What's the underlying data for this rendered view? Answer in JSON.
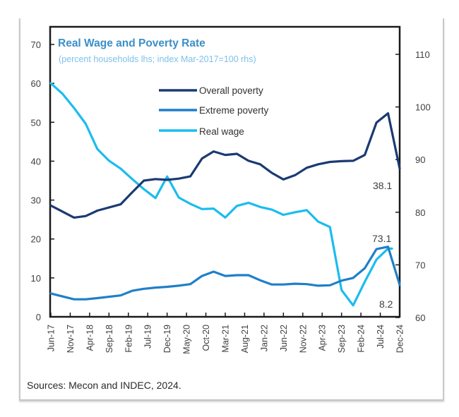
{
  "chart_data": {
    "type": "line",
    "title": "Real Wage and Poverty Rate",
    "subtitle": "(percent households lhs; index Mar-2017=100 rhs)",
    "xlabel": "",
    "ylabel_left": "percent households",
    "ylabel_right": "index Mar-2017=100",
    "x_start": "Jun-17",
    "x_end": "Dec-24",
    "x_tick_labels": [
      "Jun-17",
      "Nov-17",
      "Apr-18",
      "Sep-18",
      "Feb-19",
      "Jul-19",
      "Dec-19",
      "May-20",
      "Oct-20",
      "Mar-21",
      "Aug-21",
      "Jan-22",
      "Jun-22",
      "Nov-22",
      "Apr-23",
      "Sep-23",
      "Feb-24",
      "Jul-24",
      "Dec-24"
    ],
    "ylim_left": [
      0,
      70
    ],
    "yticks_left": [
      0,
      10,
      20,
      30,
      40,
      50,
      60,
      70
    ],
    "ylim_right": [
      60,
      110
    ],
    "yticks_right": [
      60,
      70,
      80,
      90,
      100,
      110
    ],
    "grid": false,
    "legend_position": "top-center",
    "series": [
      {
        "name": "Overall poverty",
        "axis": "left",
        "color": "#1b3a73",
        "months": [
          0,
          6,
          9,
          12,
          18,
          21,
          24,
          27,
          30,
          33,
          36,
          39,
          42,
          45,
          48,
          51,
          54,
          57,
          60,
          63,
          66,
          69,
          72,
          75,
          78,
          81,
          84,
          87,
          90
        ],
        "values": [
          28.6,
          25.5,
          25.9,
          27.3,
          28.9,
          32.0,
          35.0,
          35.4,
          35.2,
          35.5,
          36.1,
          40.7,
          42.5,
          41.6,
          41.9,
          40.1,
          39.2,
          37.0,
          35.3,
          36.4,
          38.3,
          39.2,
          39.8,
          40.0,
          40.1,
          41.6,
          49.9,
          52.3,
          38.1
        ]
      },
      {
        "name": "Extreme poverty",
        "axis": "left",
        "color": "#1f7fc8",
        "months": [
          0,
          6,
          9,
          12,
          18,
          21,
          24,
          27,
          30,
          33,
          36,
          39,
          42,
          45,
          48,
          51,
          54,
          57,
          60,
          63,
          66,
          69,
          72,
          75,
          78,
          81,
          84,
          87,
          90
        ],
        "values": [
          6.0,
          4.5,
          4.5,
          4.8,
          5.5,
          6.7,
          7.2,
          7.5,
          7.7,
          8.0,
          8.4,
          10.5,
          11.6,
          10.5,
          10.7,
          10.7,
          9.4,
          8.3,
          8.3,
          8.5,
          8.4,
          8.0,
          8.1,
          9.3,
          10.0,
          12.5,
          17.4,
          18.0,
          8.2
        ]
      },
      {
        "name": "Real wage",
        "axis": "right",
        "color": "#1bbcf0",
        "months": [
          0,
          3,
          6,
          9,
          12,
          15,
          18,
          21,
          24,
          27,
          30,
          33,
          36,
          39,
          42,
          45,
          48,
          51,
          54,
          57,
          60,
          63,
          66,
          69,
          72,
          75,
          78,
          81,
          84,
          87,
          88
        ],
        "values": [
          104.5,
          102.5,
          99.8,
          96.8,
          92.0,
          89.8,
          88.3,
          86.3,
          84.4,
          82.7,
          86.8,
          82.8,
          81.6,
          80.6,
          80.7,
          79.0,
          81.2,
          81.8,
          81.0,
          80.5,
          79.5,
          80.0,
          80.4,
          78.2,
          77.2,
          65.2,
          62.3,
          66.8,
          71.0,
          73.1,
          73.1
        ]
      }
    ],
    "annotations": [
      {
        "text": "38.1",
        "series": "Overall poverty"
      },
      {
        "text": "73.1",
        "series": "Real wage"
      },
      {
        "text": "8.2",
        "series": "Extreme poverty"
      }
    ]
  },
  "source": "Sources: Mecon and INDEC, 2024.",
  "colors": {
    "title": "#3b8fc6",
    "subtitle": "#7dc2ea",
    "axis": "#1a1a1a"
  }
}
